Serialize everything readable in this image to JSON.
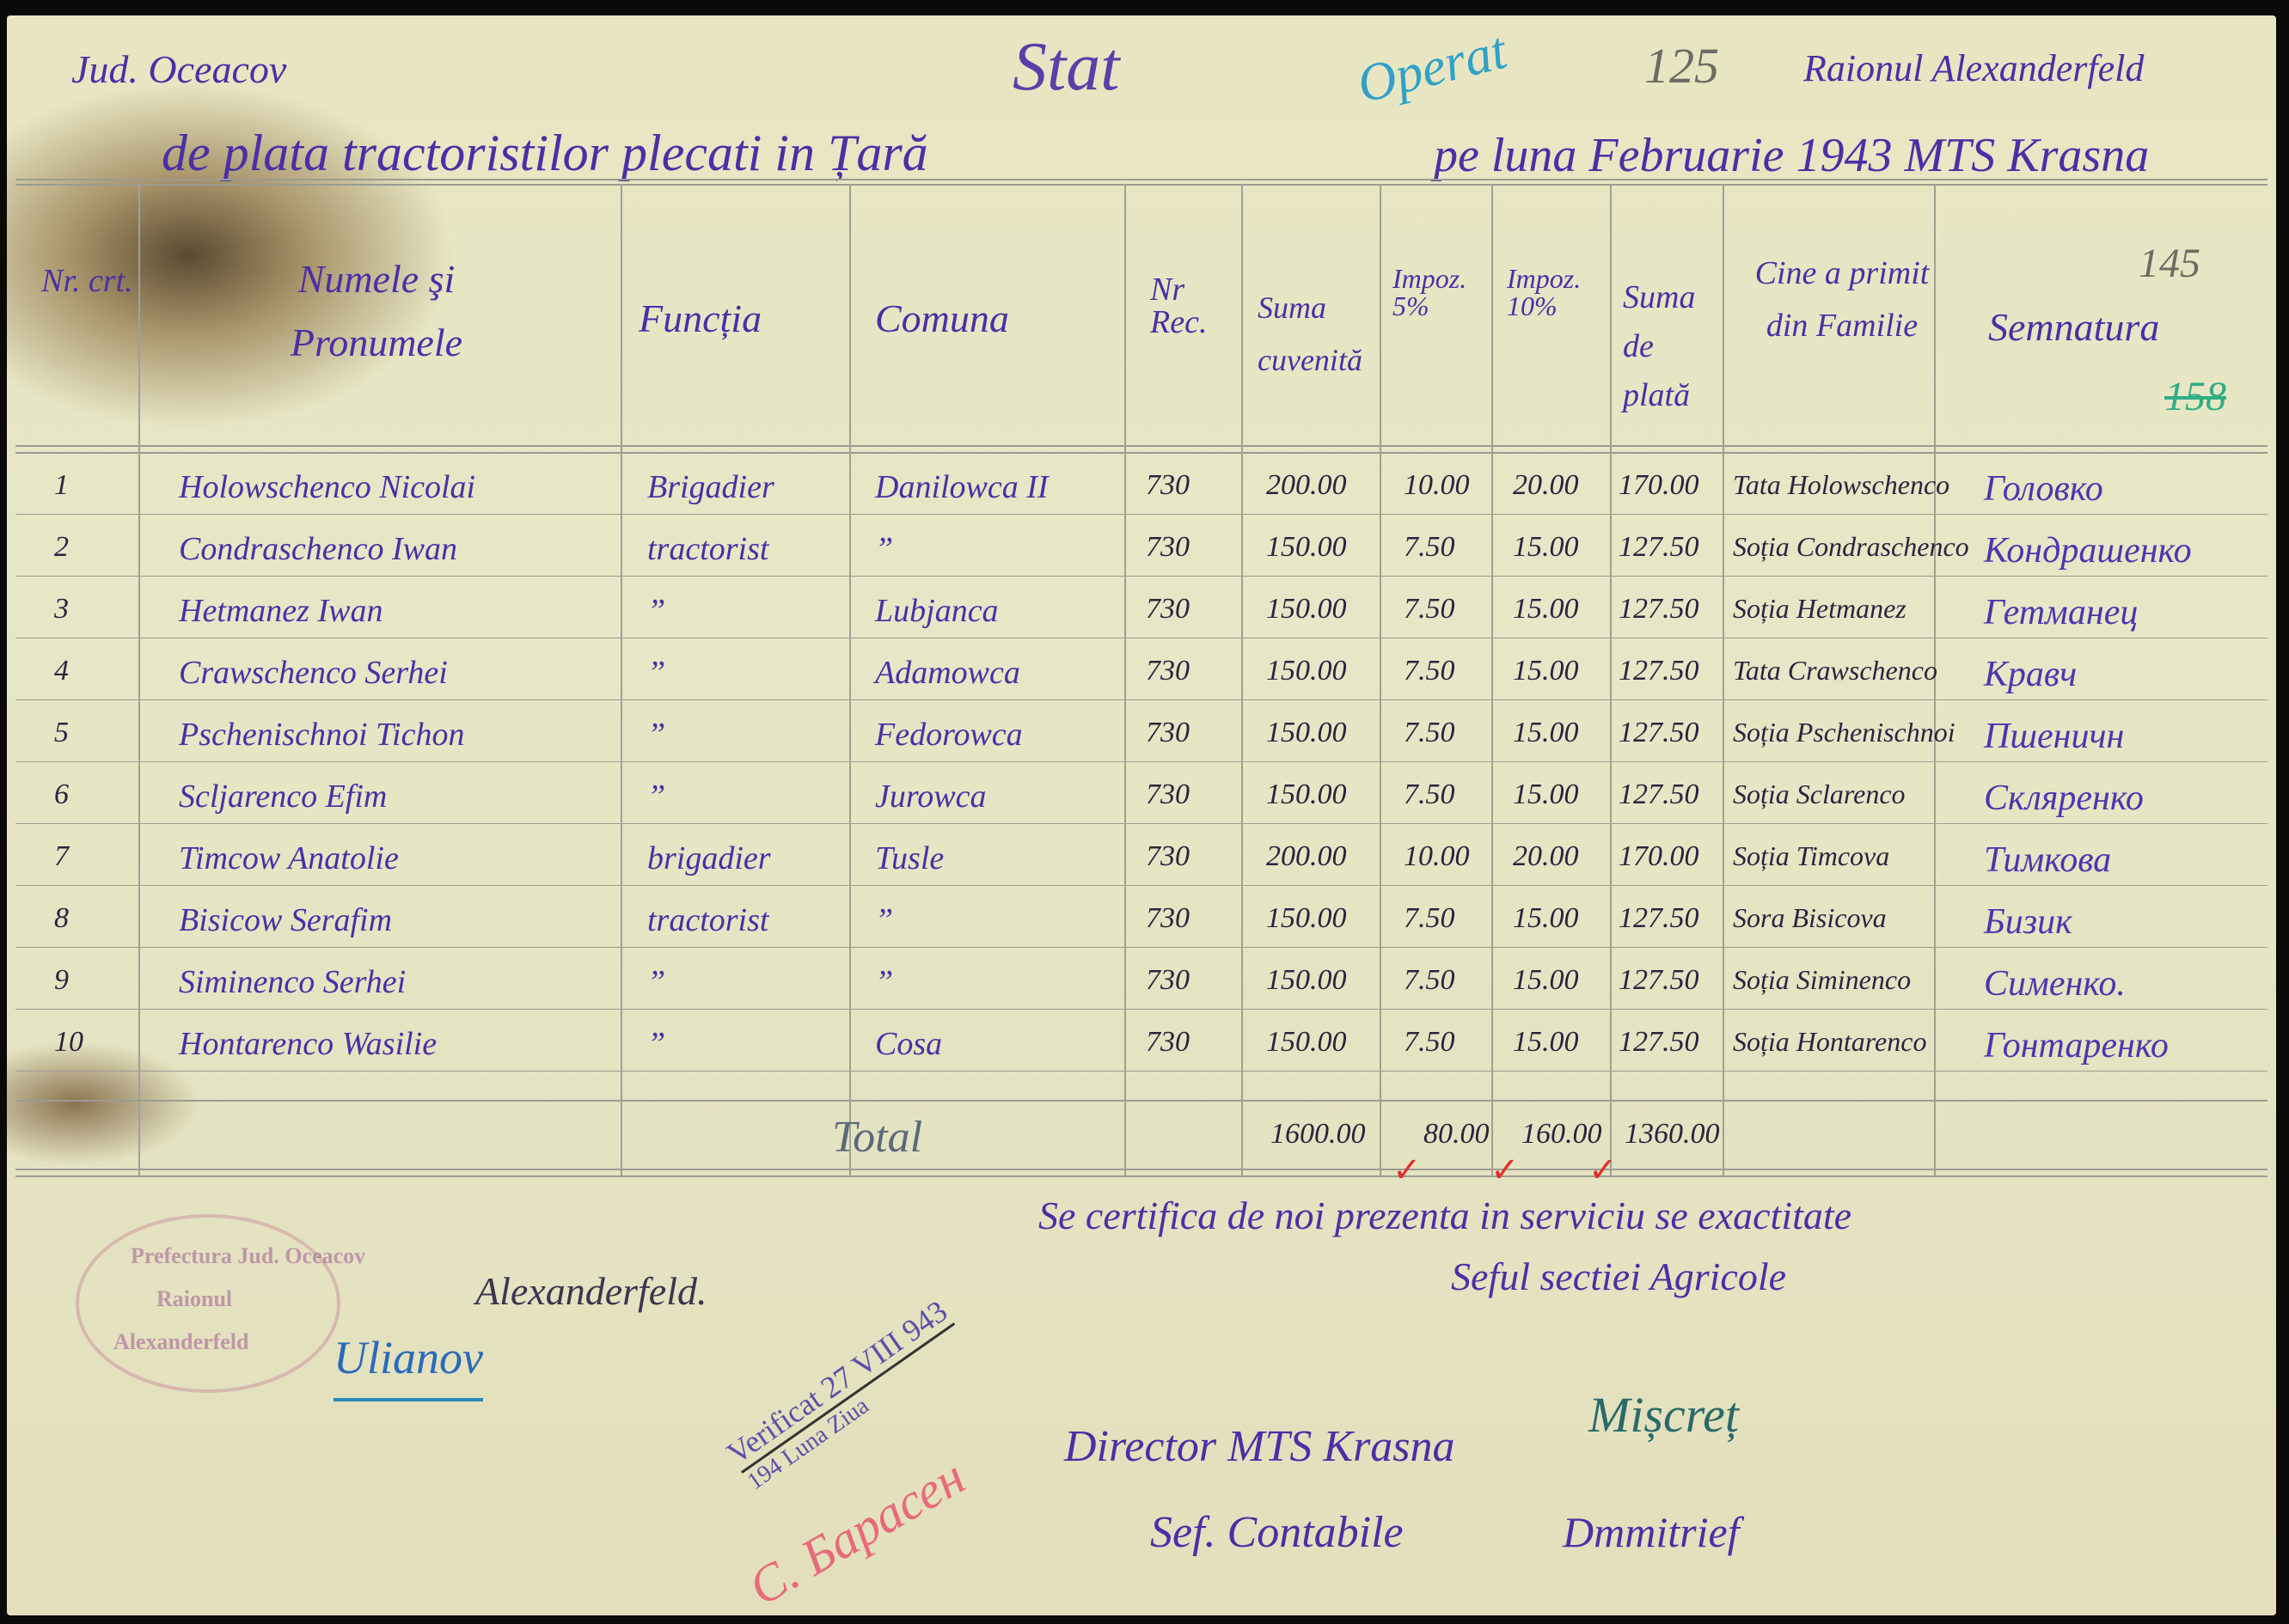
{
  "header": {
    "judet": "Jud. Oceacov",
    "title": "Stat",
    "operat_stamp": "Operat",
    "pencil_number_top": "125",
    "raion": "Raionul Alexanderfeld",
    "subtitle": "de plata tractoristilor plecati in Țară",
    "period": "pe luna Februarie 1943 MTS Krasna",
    "pencil_number_right": "145",
    "green_number": "158"
  },
  "columns": {
    "nr": "Nr. crt.",
    "name": "Numele şi Pronumele",
    "function": "Funcția",
    "commune": "Comuna",
    "nr_rec": "Nr Rec.",
    "sum_earned": "Suma cuvenită",
    "tax5": "Impoz. 5%",
    "tax10": "Impoz. 10%",
    "sum_paid": "Suma de plată",
    "received_by": "Cine a primit din Familie",
    "signature": "Semnatura"
  },
  "rows": [
    {
      "nr": "1",
      "name": "Holowschenco Nicolai",
      "function": "Brigadier",
      "commune": "Danilowca II",
      "rec": "730",
      "sum": "200.00",
      "tax5": "10.00",
      "tax10": "20.00",
      "paid": "170.00",
      "received": "Tata Holowschenco",
      "signature": "Головко"
    },
    {
      "nr": "2",
      "name": "Condraschenco Iwan",
      "function": "tractorist",
      "commune": "”",
      "rec": "730",
      "sum": "150.00",
      "tax5": "7.50",
      "tax10": "15.00",
      "paid": "127.50",
      "received": "Soția Condraschenco",
      "signature": "Кондрашенко"
    },
    {
      "nr": "3",
      "name": "Hetmanez Iwan",
      "function": "”",
      "commune": "Lubjanca",
      "rec": "730",
      "sum": "150.00",
      "tax5": "7.50",
      "tax10": "15.00",
      "paid": "127.50",
      "received": "Soția Hetmanez",
      "signature": "Гетманец"
    },
    {
      "nr": "4",
      "name": "Crawschenco Serhei",
      "function": "”",
      "commune": "Adamowca",
      "rec": "730",
      "sum": "150.00",
      "tax5": "7.50",
      "tax10": "15.00",
      "paid": "127.50",
      "received": "Tata Crawschenco",
      "signature": "Кравч"
    },
    {
      "nr": "5",
      "name": "Pschenischnoi Tichon",
      "function": "”",
      "commune": "Fedorowca",
      "rec": "730",
      "sum": "150.00",
      "tax5": "7.50",
      "tax10": "15.00",
      "paid": "127.50",
      "received": "Soția Pschenischnoi",
      "signature": "Пшеничн"
    },
    {
      "nr": "6",
      "name": "Scljarenco Efim",
      "function": "”",
      "commune": "Jurowca",
      "rec": "730",
      "sum": "150.00",
      "tax5": "7.50",
      "tax10": "15.00",
      "paid": "127.50",
      "received": "Soția Sclarenco",
      "signature": "Скляренко"
    },
    {
      "nr": "7",
      "name": "Timcow Anatolie",
      "function": "brigadier",
      "commune": "Tusle",
      "rec": "730",
      "sum": "200.00",
      "tax5": "10.00",
      "tax10": "20.00",
      "paid": "170.00",
      "received": "Soția Timcova",
      "signature": "Тимкова"
    },
    {
      "nr": "8",
      "name": "Bisicow Serafim",
      "function": "tractorist",
      "commune": "”",
      "rec": "730",
      "sum": "150.00",
      "tax5": "7.50",
      "tax10": "15.00",
      "paid": "127.50",
      "received": "Sora Bisicova",
      "signature": "Бизик"
    },
    {
      "nr": "9",
      "name": "Siminenco Serhei",
      "function": "”",
      "commune": "”",
      "rec": "730",
      "sum": "150.00",
      "tax5": "7.50",
      "tax10": "15.00",
      "paid": "127.50",
      "received": "Soția Siminenco",
      "signature": "Сименко."
    },
    {
      "nr": "10",
      "name": "Hontarenco Wasilie",
      "function": "”",
      "commune": "Cosa",
      "rec": "730",
      "sum": "150.00",
      "tax5": "7.50",
      "tax10": "15.00",
      "paid": "127.50",
      "received": "Soția Hontarenco",
      "signature": "Гонтаренко"
    }
  ],
  "totals": {
    "label": "Total",
    "sum": "1600.00",
    "tax5": "80.00",
    "tax10": "160.00",
    "paid": "1360.00"
  },
  "footer": {
    "certification": "Se certifica de noi prezenta in serviciu se exactitate",
    "section_chief": "Seful sectiei Agricole",
    "stamp_lines": [
      "Prefectura Jud. Oceacov",
      "Raionul",
      "Alexanderfeld"
    ],
    "alexanderfeld": "Alexanderfeld.",
    "signature_left": "Ulianov",
    "verified_stamp": "Verificat 27 VIII 943",
    "verified_stamp_bottom": "194 Luna Ziua",
    "red_signature": "С. Барасен",
    "director": "Director MTS Krasna",
    "director_signature": "Mișcreț",
    "accountant": "Sef. Contabile",
    "accountant_signature": "Dmmitrief"
  },
  "colors": {
    "ink": "#4a2fa6",
    "pencil": "#6c6c64",
    "paper": "#e6e7c6",
    "red_ink": "#e0302f",
    "green_ink": "#2fae86",
    "blue_ink": "#2a8ab8"
  }
}
